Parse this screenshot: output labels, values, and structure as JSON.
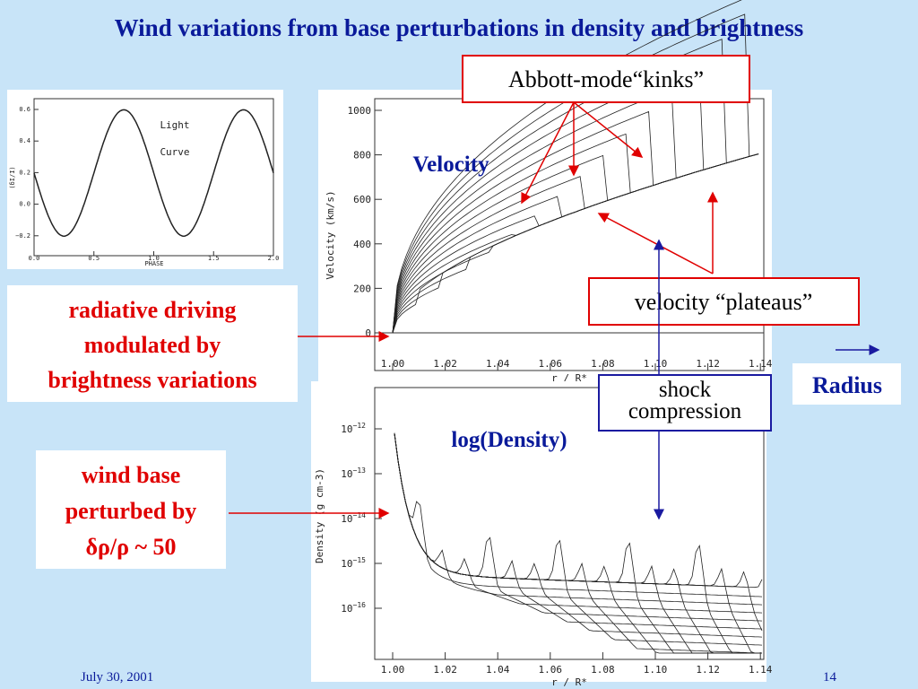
{
  "title": "Wind variations from base perturbations in density and brightness",
  "light_curve": {
    "label_lines": [
      "Light",
      "Curve"
    ],
    "xlabel": "PHASE",
    "ylabel": "(δI/I)",
    "yticks": [
      "0.6",
      "0.4",
      "0.2",
      "0.0",
      "−0.2"
    ],
    "xticks": [
      "0.0",
      "0.5",
      "1.0",
      "1.5",
      "2.0"
    ]
  },
  "velocity_plot": {
    "label": "Velocity",
    "ylabel": "Velocity (km/s)",
    "xlabel": "r / R*",
    "yticks": [
      "1000",
      "800",
      "600",
      "400",
      "200",
      "0"
    ],
    "xticks": [
      "1.00",
      "1.02",
      "1.04",
      "1.06",
      "1.08",
      "1.10",
      "1.12",
      "1.14"
    ]
  },
  "density_plot": {
    "label": "log(Density)",
    "ylabel": "Density (g cm-3)",
    "xlabel": "r / R*",
    "yticks": [
      {
        "base": "10",
        "exp": "−12"
      },
      {
        "base": "10",
        "exp": "−13"
      },
      {
        "base": "10",
        "exp": "−14"
      },
      {
        "base": "10",
        "exp": "−15"
      },
      {
        "base": "10",
        "exp": "−16"
      }
    ],
    "xticks": [
      "1.00",
      "1.02",
      "1.04",
      "1.06",
      "1.08",
      "1.10",
      "1.12",
      "1.14"
    ]
  },
  "callouts": {
    "kinks": "Abbott-mode“kinks”",
    "plateaus": "velocity “plateaus”",
    "shock": [
      "shock",
      "compression"
    ],
    "radius": "Radius",
    "driving": [
      "radiative driving",
      "modulated by",
      "brightness variations"
    ],
    "base": [
      "wind base",
      "perturbed by",
      "δρ/ρ ~ 50"
    ]
  },
  "footer": {
    "date": "July 30, 2001",
    "page": "14"
  }
}
